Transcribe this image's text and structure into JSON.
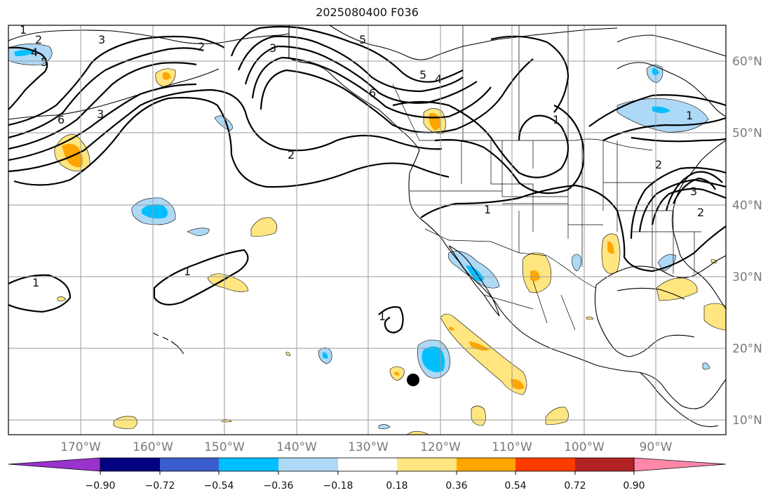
{
  "title": "2025080400 F036",
  "map": {
    "lat_labels": [
      "60°N",
      "50°N",
      "40°N",
      "30°N",
      "20°N",
      "10°N"
    ],
    "lon_labels": [
      "170°W",
      "160°W",
      "150°W",
      "140°W",
      "130°W",
      "120°W",
      "110°W",
      "100°W",
      "90°W"
    ],
    "contour_labels": [
      "1",
      "2",
      "3",
      "4",
      "5",
      "6"
    ]
  },
  "colorbar": {
    "ticks": [
      "−0.90",
      "−0.72",
      "−0.54",
      "−0.36",
      "−0.18",
      "0.18",
      "0.36",
      "0.54",
      "0.72",
      "0.90"
    ],
    "colors": [
      "#9933cc",
      "#000080",
      "#3a5fcd",
      "#00bfff",
      "#add8f6",
      "#ffffff",
      "#ffe680",
      "#ffa500",
      "#ff3c00",
      "#b22222",
      "#ff88aa"
    ]
  },
  "colors": {
    "light_blue": "#add8f6",
    "blue": "#00bfff",
    "yellow": "#ffe680",
    "orange": "#ffa500"
  }
}
